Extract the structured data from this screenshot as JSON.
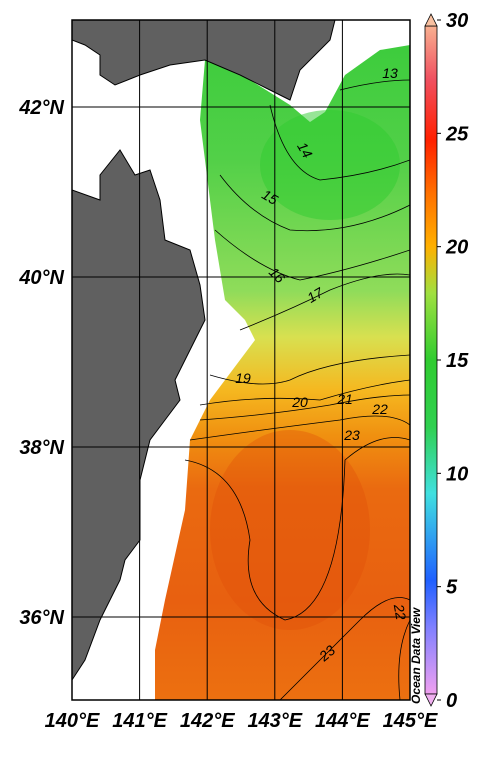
{
  "map": {
    "latitude_labels": [
      "42°N",
      "40°N",
      "38°N",
      "36°N"
    ],
    "longitude_labels": [
      "140°E",
      "141°E",
      "142°E",
      "143°E",
      "144°E",
      "145°E"
    ],
    "colorbar": {
      "range": [
        0,
        30
      ],
      "ticks": [
        0,
        5,
        10,
        15,
        20,
        25,
        30
      ]
    },
    "contour_labels": [
      13,
      14,
      15,
      16,
      17,
      19,
      20,
      21,
      22,
      23,
      23,
      22
    ],
    "watermark": "Ocean Data View"
  }
}
